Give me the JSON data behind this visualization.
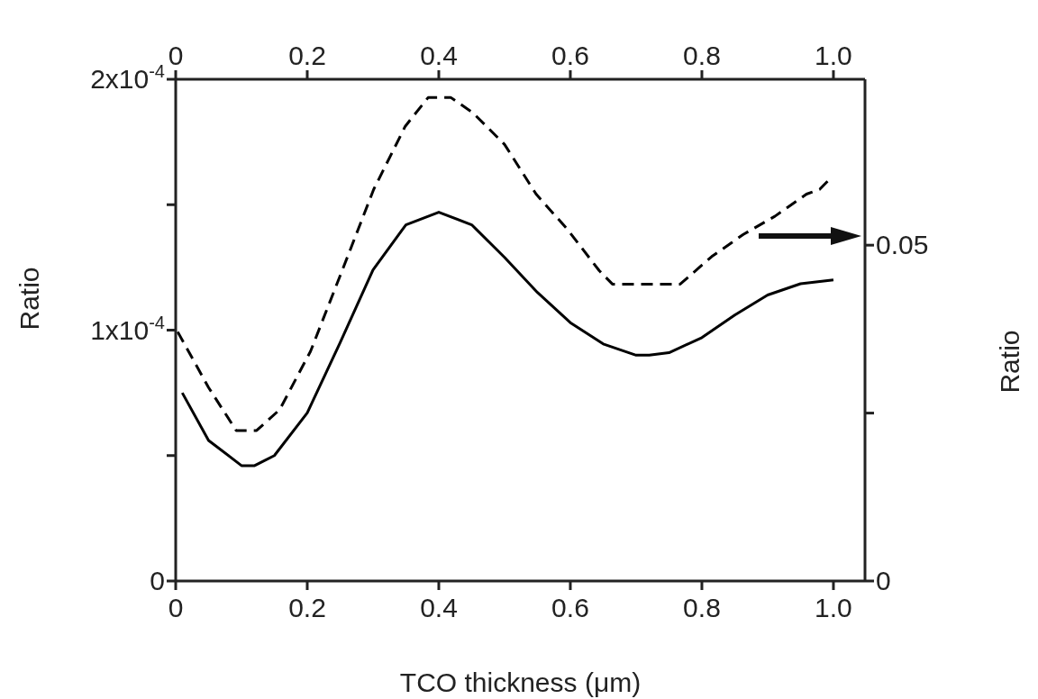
{
  "chart_data": {
    "type": "line",
    "xlabel": "TCO thickness (μm)",
    "ylabel": "Ratio",
    "y2label": "Ratio",
    "marker": "none",
    "xlim": [
      0,
      1.048
    ],
    "xticks": [
      0,
      0.2,
      0.4,
      0.6,
      0.8,
      {
        "value": 1,
        "label": "1.0"
      }
    ],
    "x2lim": [
      0,
      1.048
    ],
    "x2ticks": [
      0,
      0.2,
      0.4,
      0.6,
      0.8,
      {
        "value": 1,
        "label": "1.0"
      }
    ],
    "ylim": [
      0,
      0.0002
    ],
    "yticks": [
      0,
      {
        "value": 5e-05,
        "label": null
      },
      {
        "value": 0.0001,
        "label": "1x10$^{-4}$"
      },
      {
        "value": 0.00015,
        "label": null
      },
      {
        "value": 0.0002,
        "label": "2x10$^{-4}$"
      }
    ],
    "y2lim": [
      0,
      0.0747
    ],
    "y2ticks": [
      0,
      {
        "value": 0.025,
        "label": null
      },
      0.05
    ],
    "series": [
      {
        "color": "#000000",
        "line_style": "solid",
        "x": [
          0.01,
          0.05,
          0.1,
          0.12,
          0.15,
          0.2,
          0.25,
          0.3,
          0.35,
          0.4,
          0.45,
          0.5,
          0.55,
          0.6,
          0.65,
          0.7,
          0.72,
          0.75,
          0.8,
          0.85,
          0.9,
          0.95,
          1.0
        ],
        "values": [
          7.5e-05,
          5.6e-05,
          4.6e-05,
          4.6e-05,
          5e-05,
          6.7e-05,
          9.5e-05,
          0.000124,
          0.000142,
          0.000147,
          0.000142,
          0.000129,
          0.000115,
          0.000103,
          9.45e-05,
          9e-05,
          9e-05,
          9.1e-05,
          9.7e-05,
          0.000106,
          0.000114,
          0.0001185,
          0.00012
        ]
      },
      {
        "color": "#000000",
        "line_style": "dashed",
        "axis": "y2",
        "x": [
          0.003,
          0.05,
          0.092,
          0.123,
          0.158,
          0.205,
          0.253,
          0.301,
          0.349,
          0.384,
          0.418,
          0.452,
          0.5,
          0.548,
          0.596,
          0.644,
          0.664,
          0.767,
          0.815,
          0.863,
          0.911,
          0.959,
          0.979,
          0.993
        ],
        "values": [
          0.0371,
          0.0288,
          0.0224,
          0.0224,
          0.0255,
          0.0342,
          0.0462,
          0.0583,
          0.0677,
          0.072,
          0.072,
          0.0697,
          0.065,
          0.0576,
          0.0523,
          0.0462,
          0.0442,
          0.0442,
          0.0483,
          0.0516,
          0.0543,
          0.0576,
          0.0583,
          0.0597
        ]
      }
    ]
  }
}
